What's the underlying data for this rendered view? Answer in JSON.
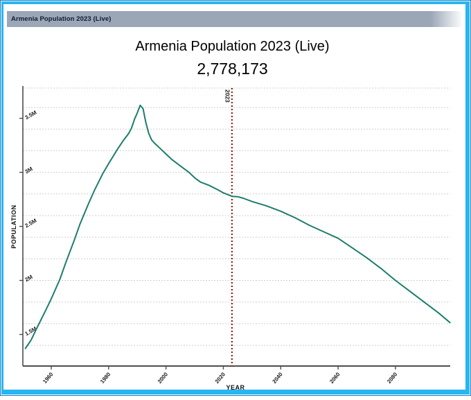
{
  "window": {
    "title": "Armenia Population 2023 (Live)"
  },
  "chart": {
    "title": "Armenia Population 2023 (Live)",
    "live_value": "2,778,173",
    "x_axis": {
      "title": "YEAR"
    },
    "y_axis": {
      "title": "POPULATION"
    }
  },
  "colors": {
    "frame_accent": "#27b5f3",
    "frame_edge": "#0d7ec0",
    "titlebar_bg": "#9ba6b7",
    "line": "#1b7d6b",
    "marker_line": "#990000",
    "gridline": "#cfcfcf",
    "axis": "#4d4d4d",
    "tick_text": "#1a1a1a"
  },
  "chart_data": {
    "type": "line",
    "title": "Armenia Population 2023 (Live)",
    "subtitle": "2,778,173",
    "xlabel": "YEAR",
    "ylabel": "POPULATION",
    "x_range": [
      1950,
      2100
    ],
    "y_range_millions": [
      1.2,
      3.78
    ],
    "grid": "on",
    "legend_position": "none",
    "x_ticks": [
      {
        "value": 1960,
        "label": "1960"
      },
      {
        "value": 1980,
        "label": "1980"
      },
      {
        "value": 2000,
        "label": "2000"
      },
      {
        "value": 2020,
        "label": "2020"
      },
      {
        "value": 2040,
        "label": "2040"
      },
      {
        "value": 2060,
        "label": "2060"
      },
      {
        "value": 2080,
        "label": "2080"
      }
    ],
    "y_ticks": [
      {
        "value": 1500000,
        "label": "1.5M"
      },
      {
        "value": 2000000,
        "label": "2M"
      },
      {
        "value": 2500000,
        "label": "2.5M"
      },
      {
        "value": 3000000,
        "label": "3M"
      },
      {
        "value": 3500000,
        "label": "3.5M"
      }
    ],
    "gridline_values": [
      3780000,
      3600000,
      3400000,
      3200000,
      3000000,
      2800000,
      2600000,
      2400000,
      2200000,
      2000000,
      1800000,
      1600000,
      1400000
    ],
    "marker_line": {
      "year": 2023,
      "label": "2023",
      "color": "#990000"
    },
    "series": [
      {
        "name": "Armenia Population",
        "color": "#1b7d6b",
        "points": [
          [
            1951,
            1370000
          ],
          [
            1953,
            1450000
          ],
          [
            1955,
            1560000
          ],
          [
            1958,
            1720000
          ],
          [
            1960,
            1830000
          ],
          [
            1963,
            2010000
          ],
          [
            1965,
            2160000
          ],
          [
            1968,
            2370000
          ],
          [
            1970,
            2520000
          ],
          [
            1973,
            2710000
          ],
          [
            1975,
            2830000
          ],
          [
            1978,
            2990000
          ],
          [
            1980,
            3080000
          ],
          [
            1983,
            3210000
          ],
          [
            1985,
            3290000
          ],
          [
            1987,
            3360000
          ],
          [
            1988,
            3410000
          ],
          [
            1989,
            3490000
          ],
          [
            1990,
            3550000
          ],
          [
            1991,
            3620000
          ],
          [
            1992,
            3590000
          ],
          [
            1993,
            3460000
          ],
          [
            1994,
            3360000
          ],
          [
            1995,
            3300000
          ],
          [
            1996,
            3270000
          ],
          [
            1998,
            3220000
          ],
          [
            2000,
            3170000
          ],
          [
            2002,
            3120000
          ],
          [
            2005,
            3060000
          ],
          [
            2008,
            3000000
          ],
          [
            2010,
            2950000
          ],
          [
            2012,
            2910000
          ],
          [
            2015,
            2880000
          ],
          [
            2018,
            2840000
          ],
          [
            2020,
            2810000
          ],
          [
            2022,
            2790000
          ],
          [
            2023,
            2778173
          ],
          [
            2025,
            2775000
          ],
          [
            2027,
            2760000
          ],
          [
            2030,
            2730000
          ],
          [
            2035,
            2690000
          ],
          [
            2040,
            2640000
          ],
          [
            2045,
            2580000
          ],
          [
            2050,
            2510000
          ],
          [
            2055,
            2450000
          ],
          [
            2060,
            2390000
          ],
          [
            2065,
            2300000
          ],
          [
            2070,
            2210000
          ],
          [
            2075,
            2110000
          ],
          [
            2080,
            2000000
          ],
          [
            2085,
            1900000
          ],
          [
            2090,
            1800000
          ],
          [
            2095,
            1700000
          ],
          [
            2099,
            1610000
          ]
        ]
      }
    ]
  }
}
